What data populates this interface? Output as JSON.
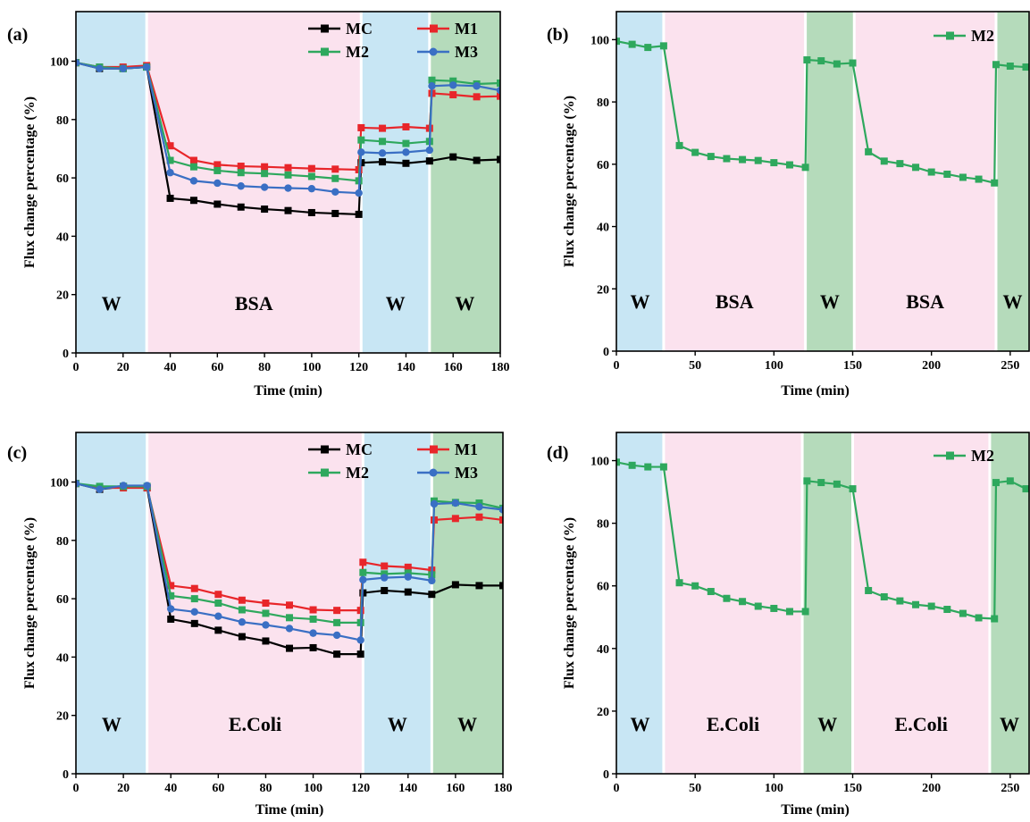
{
  "figure": {
    "panels": [
      "(a)",
      "(b)",
      "(c)",
      "(d)"
    ]
  },
  "colors": {
    "MC": "#000000",
    "M1": "#e8262a",
    "M2": "#2ea85d",
    "M3": "#3a6fc4",
    "region_water": "#c8e6f4",
    "region_foulant": "#fbe2ee",
    "region_water_rinse": "#b5dbbb"
  },
  "chart_data": [
    {
      "type": "line",
      "panel_label": "(a)",
      "xlabel": "Time (min)",
      "ylabel": "Flux change percentage (%)",
      "xlim": [
        0,
        180
      ],
      "ylim": [
        0,
        117
      ],
      "xticks": [
        0,
        20,
        40,
        60,
        80,
        100,
        120,
        140,
        160,
        180
      ],
      "yticks": [
        0,
        20,
        40,
        60,
        80,
        100
      ],
      "grid": false,
      "legend_position": "top-right",
      "legend_columns": 2,
      "regions": [
        {
          "label": "W",
          "start": 0,
          "end": 30,
          "kind": "water"
        },
        {
          "label": "BSA",
          "start": 30,
          "end": 121,
          "kind": "foulant"
        },
        {
          "label": "W",
          "start": 121,
          "end": 150,
          "kind": "water"
        },
        {
          "label": "W",
          "start": 150,
          "end": 180,
          "kind": "rinse"
        }
      ],
      "series": [
        {
          "name": "MC",
          "color": "#000000",
          "marker": "square",
          "x": [
            0,
            10,
            20,
            30,
            40,
            50,
            60,
            70,
            80,
            90,
            100,
            110,
            120,
            121,
            130,
            140,
            150,
            160,
            170,
            180
          ],
          "y": [
            99.5,
            97.5,
            97.5,
            98,
            53,
            52.3,
            51,
            50,
            49.3,
            48.8,
            48.1,
            47.8,
            47.5,
            65.2,
            65.5,
            65,
            65.8,
            67.2,
            66,
            66.3
          ]
        },
        {
          "name": "M1",
          "color": "#e8262a",
          "marker": "square",
          "x": [
            0,
            10,
            20,
            30,
            40,
            50,
            60,
            70,
            80,
            90,
            100,
            110,
            120,
            121,
            130,
            140,
            150,
            151,
            160,
            170,
            180
          ],
          "y": [
            99.5,
            98,
            98,
            98.5,
            71,
            66,
            64.5,
            64,
            63.8,
            63.5,
            63.2,
            63,
            62.8,
            77.2,
            77,
            77.5,
            77,
            89,
            88.5,
            87.8,
            88
          ]
        },
        {
          "name": "M2",
          "color": "#2ea85d",
          "marker": "square",
          "x": [
            0,
            10,
            20,
            30,
            40,
            50,
            60,
            70,
            80,
            90,
            100,
            110,
            120,
            121,
            130,
            140,
            150,
            151,
            160,
            170,
            180
          ],
          "y": [
            99.5,
            98,
            97.5,
            98,
            66,
            63.8,
            62.5,
            61.8,
            61.5,
            61,
            60.5,
            59.8,
            59,
            73,
            72.5,
            71.8,
            72.5,
            93.5,
            93.2,
            92.2,
            92.5
          ]
        },
        {
          "name": "M3",
          "color": "#3a6fc4",
          "marker": "circle",
          "x": [
            0,
            10,
            20,
            30,
            40,
            50,
            60,
            70,
            80,
            90,
            100,
            110,
            120,
            121,
            130,
            140,
            150,
            151,
            160,
            170,
            180
          ],
          "y": [
            99.5,
            97.5,
            97.5,
            98,
            61.8,
            59,
            58.2,
            57.2,
            56.8,
            56.5,
            56.3,
            55.2,
            54.8,
            68.8,
            68.5,
            68.8,
            69.5,
            91.5,
            91.8,
            91.5,
            90
          ]
        }
      ]
    },
    {
      "type": "line",
      "panel_label": "(b)",
      "xlabel": "Time (min)",
      "ylabel": "Flux change percentage (%)",
      "xlim": [
        0,
        262
      ],
      "ylim": [
        0,
        109
      ],
      "xticks": [
        0,
        50,
        100,
        150,
        200,
        250
      ],
      "yticks": [
        0,
        20,
        40,
        60,
        80,
        100
      ],
      "grid": false,
      "legend_position": "top-right",
      "legend_columns": 1,
      "regions": [
        {
          "label": "W",
          "start": 0,
          "end": 30,
          "kind": "water"
        },
        {
          "label": "BSA",
          "start": 30,
          "end": 120,
          "kind": "foulant"
        },
        {
          "label": "W",
          "start": 120,
          "end": 151,
          "kind": "rinse"
        },
        {
          "label": "BSA",
          "start": 151,
          "end": 241,
          "kind": "foulant"
        },
        {
          "label": "W",
          "start": 241,
          "end": 262,
          "kind": "rinse"
        }
      ],
      "series": [
        {
          "name": "M2",
          "color": "#2ea85d",
          "marker": "square",
          "x": [
            0,
            10,
            20,
            30,
            40,
            50,
            60,
            70,
            80,
            90,
            100,
            110,
            120,
            121,
            130,
            140,
            150,
            160,
            170,
            180,
            190,
            200,
            210,
            220,
            230,
            240,
            241,
            250,
            260
          ],
          "y": [
            99.5,
            98.5,
            97.5,
            98,
            66,
            63.8,
            62.5,
            61.8,
            61.5,
            61.2,
            60.5,
            59.8,
            59,
            93.5,
            93.2,
            92.2,
            92.5,
            64,
            61,
            60.2,
            59,
            57.5,
            56.8,
            55.8,
            55.2,
            54,
            92,
            91.5,
            91.2
          ]
        }
      ]
    },
    {
      "type": "line",
      "panel_label": "(c)",
      "xlabel": "Time (min)",
      "ylabel": "Flux change percentage (%)",
      "xlim": [
        0,
        180
      ],
      "ylim": [
        0,
        117
      ],
      "xticks": [
        0,
        20,
        40,
        60,
        80,
        100,
        120,
        140,
        160,
        180
      ],
      "yticks": [
        0,
        20,
        40,
        60,
        80,
        100
      ],
      "grid": false,
      "legend_position": "top-right",
      "legend_columns": 2,
      "regions": [
        {
          "label": "W",
          "start": 0,
          "end": 30,
          "kind": "water"
        },
        {
          "label": "E.Coli",
          "start": 30,
          "end": 121,
          "kind": "foulant"
        },
        {
          "label": "W",
          "start": 121,
          "end": 150,
          "kind": "water"
        },
        {
          "label": "W",
          "start": 150,
          "end": 180,
          "kind": "rinse"
        }
      ],
      "series": [
        {
          "name": "MC",
          "color": "#000000",
          "marker": "square",
          "x": [
            0,
            10,
            20,
            30,
            40,
            50,
            60,
            70,
            80,
            90,
            100,
            110,
            120,
            121,
            130,
            140,
            150,
            160,
            170,
            180
          ],
          "y": [
            99.5,
            97.5,
            98.5,
            98,
            53,
            51.5,
            49.2,
            47,
            45.5,
            43,
            43.2,
            41,
            41,
            62,
            62.8,
            62.3,
            61.5,
            64.8,
            64.5,
            64.5
          ]
        },
        {
          "name": "M1",
          "color": "#e8262a",
          "marker": "square",
          "x": [
            0,
            10,
            20,
            30,
            40,
            50,
            60,
            70,
            80,
            90,
            100,
            110,
            120,
            121,
            130,
            140,
            150,
            151,
            160,
            170,
            180
          ],
          "y": [
            99.5,
            98,
            98,
            98,
            64.5,
            63.5,
            61.5,
            59.5,
            58.5,
            57.8,
            56.2,
            56,
            56,
            72.5,
            71.2,
            70.8,
            69.8,
            87,
            87.5,
            88,
            87
          ]
        },
        {
          "name": "M2",
          "color": "#2ea85d",
          "marker": "square",
          "x": [
            0,
            10,
            20,
            30,
            40,
            50,
            60,
            70,
            80,
            90,
            100,
            110,
            120,
            121,
            130,
            140,
            150,
            151,
            160,
            170,
            180
          ],
          "y": [
            99.5,
            98.5,
            98.5,
            98.5,
            61,
            60,
            58.5,
            56.2,
            55,
            53.5,
            53,
            51.8,
            51.8,
            69,
            68.5,
            68.8,
            68.2,
            93.5,
            93,
            92.8,
            91
          ]
        },
        {
          "name": "M3",
          "color": "#3a6fc4",
          "marker": "circle",
          "x": [
            0,
            10,
            20,
            30,
            40,
            50,
            60,
            70,
            80,
            90,
            100,
            110,
            120,
            121,
            130,
            140,
            150,
            151,
            160,
            170,
            180
          ],
          "y": [
            99.5,
            97.5,
            98.8,
            98.8,
            56.5,
            55.5,
            54,
            52,
            51,
            49.8,
            48.2,
            47.5,
            45.8,
            66.5,
            67.2,
            67.5,
            66.2,
            92.5,
            92.8,
            91.5,
            90.5
          ]
        }
      ]
    },
    {
      "type": "line",
      "panel_label": "(d)",
      "xlabel": "Time (min)",
      "ylabel": "Flux change percentage (%)",
      "xlim": [
        0,
        262
      ],
      "ylim": [
        0,
        109
      ],
      "xticks": [
        0,
        50,
        100,
        150,
        200,
        250
      ],
      "yticks": [
        0,
        20,
        40,
        60,
        80,
        100
      ],
      "grid": false,
      "legend_position": "top-right",
      "legend_columns": 1,
      "regions": [
        {
          "label": "W",
          "start": 0,
          "end": 30,
          "kind": "water"
        },
        {
          "label": "E.Coli",
          "start": 30,
          "end": 118,
          "kind": "foulant"
        },
        {
          "label": "W",
          "start": 118,
          "end": 150,
          "kind": "rinse"
        },
        {
          "label": "E.Coli",
          "start": 150,
          "end": 237,
          "kind": "foulant"
        },
        {
          "label": "W",
          "start": 237,
          "end": 262,
          "kind": "rinse"
        }
      ],
      "series": [
        {
          "name": "M2",
          "color": "#2ea85d",
          "marker": "square",
          "x": [
            0,
            10,
            20,
            30,
            40,
            50,
            60,
            70,
            80,
            90,
            100,
            110,
            120,
            121,
            130,
            140,
            150,
            160,
            170,
            180,
            190,
            200,
            210,
            220,
            230,
            240,
            241,
            250,
            260
          ],
          "y": [
            99.5,
            98.5,
            98,
            98,
            61,
            60,
            58.2,
            56,
            55,
            53.5,
            52.8,
            51.8,
            51.8,
            93.5,
            93,
            92.5,
            91,
            58.5,
            56.5,
            55.2,
            54,
            53.5,
            52.5,
            51.2,
            49.8,
            49.5,
            93,
            93.5,
            91
          ]
        }
      ]
    }
  ]
}
